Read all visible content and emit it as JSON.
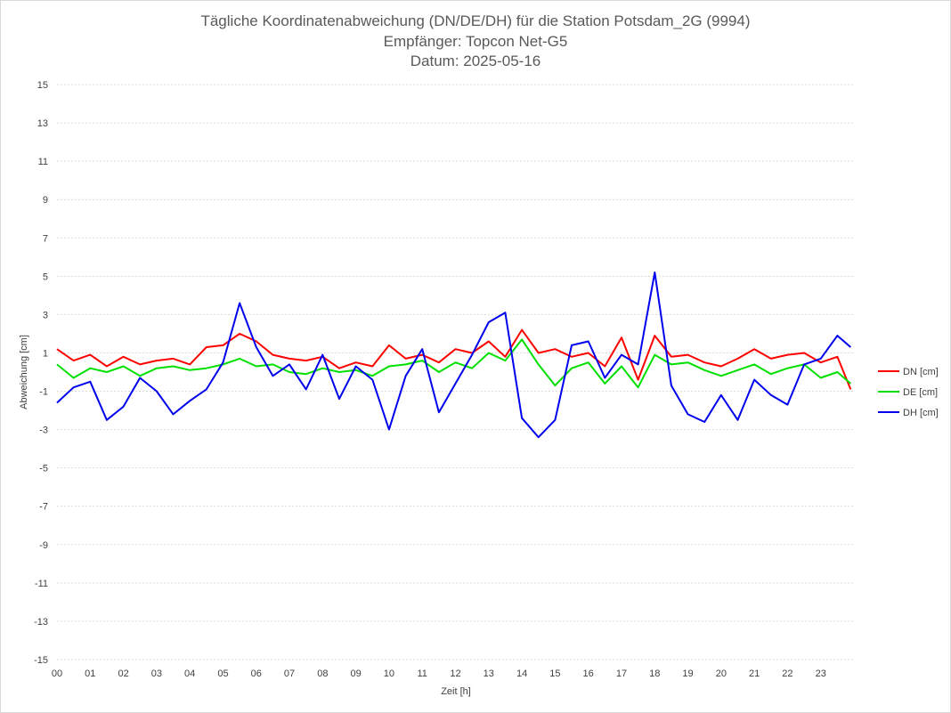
{
  "chart_data": {
    "type": "line",
    "title_lines": [
      "Tägliche Koordinatenabweichung (DN/DE/DH) für die Station Potsdam_2G (9994)",
      "Empfänger: Topcon Net-G5",
      "Datum: 2025-05-16"
    ],
    "xlabel": "Zeit [h]",
    "ylabel": "Abweichung [cm]",
    "xlim": [
      0,
      24
    ],
    "ylim": [
      -15,
      15
    ],
    "x_tick_labels": [
      "00",
      "01",
      "02",
      "03",
      "04",
      "05",
      "06",
      "07",
      "08",
      "09",
      "10",
      "11",
      "12",
      "13",
      "14",
      "15",
      "16",
      "17",
      "18",
      "19",
      "20",
      "21",
      "22",
      "23"
    ],
    "y_ticks": [
      15,
      13,
      11,
      9,
      7,
      5,
      3,
      1,
      -1,
      -3,
      -5,
      -7,
      -9,
      -11,
      -13,
      -15
    ],
    "grid": "horizontal dotted",
    "legend_position": "right",
    "x": [
      0.0,
      0.5,
      1.0,
      1.5,
      2.0,
      2.5,
      3.0,
      3.5,
      4.0,
      4.5,
      5.0,
      5.5,
      6.0,
      6.5,
      7.0,
      7.5,
      8.0,
      8.5,
      9.0,
      9.5,
      10.0,
      10.5,
      11.0,
      11.5,
      12.0,
      12.5,
      13.0,
      13.5,
      14.0,
      14.5,
      15.0,
      15.5,
      16.0,
      16.5,
      17.0,
      17.5,
      18.0,
      18.5,
      19.0,
      19.5,
      20.0,
      20.5,
      21.0,
      21.5,
      22.0,
      22.5,
      23.0,
      23.5,
      23.9
    ],
    "series": [
      {
        "name": "DN [cm]",
        "color": "#ff0000",
        "values": [
          1.2,
          0.6,
          0.9,
          0.3,
          0.8,
          0.4,
          0.6,
          0.7,
          0.4,
          1.3,
          1.4,
          2.0,
          1.6,
          0.9,
          0.7,
          0.6,
          0.8,
          0.2,
          0.5,
          0.3,
          1.4,
          0.7,
          0.9,
          0.5,
          1.2,
          1.0,
          1.6,
          0.8,
          2.2,
          1.0,
          1.2,
          0.8,
          1.0,
          0.3,
          1.8,
          -0.4,
          1.9,
          0.8,
          0.9,
          0.5,
          0.3,
          0.7,
          1.2,
          0.7,
          0.9,
          1.0,
          0.5,
          0.8,
          -0.9
        ]
      },
      {
        "name": "DE [cm]",
        "color": "#00e000",
        "values": [
          0.4,
          -0.3,
          0.2,
          0.0,
          0.3,
          -0.2,
          0.2,
          0.3,
          0.1,
          0.2,
          0.4,
          0.7,
          0.3,
          0.4,
          0.0,
          -0.1,
          0.2,
          0.0,
          0.1,
          -0.2,
          0.3,
          0.4,
          0.6,
          0.0,
          0.5,
          0.2,
          1.0,
          0.6,
          1.7,
          0.4,
          -0.7,
          0.2,
          0.5,
          -0.6,
          0.3,
          -0.8,
          0.9,
          0.4,
          0.5,
          0.1,
          -0.2,
          0.1,
          0.4,
          -0.1,
          0.2,
          0.4,
          -0.3,
          0.0,
          -0.6
        ]
      },
      {
        "name": "DH [cm]",
        "color": "#0000ee",
        "values": [
          -1.6,
          -0.8,
          -0.5,
          -2.5,
          -1.8,
          -0.3,
          -1.0,
          -2.2,
          -1.5,
          -0.9,
          0.5,
          3.6,
          1.3,
          -0.2,
          0.4,
          -0.9,
          0.9,
          -1.4,
          0.3,
          -0.4,
          -3.0,
          -0.2,
          1.2,
          -2.1,
          -0.6,
          0.9,
          2.6,
          3.1,
          -2.4,
          -3.4,
          -2.5,
          1.4,
          1.6,
          -0.3,
          0.9,
          0.4,
          5.2,
          -0.7,
          -2.2,
          -2.6,
          -1.2,
          -2.5,
          -0.4,
          -1.2,
          -1.7,
          0.4,
          0.7,
          1.9,
          1.3
        ]
      }
    ]
  }
}
